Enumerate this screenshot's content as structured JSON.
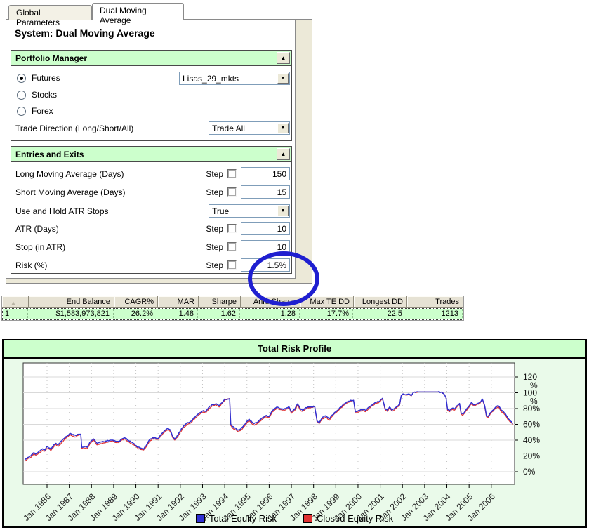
{
  "tabs": [
    {
      "label": "Global Parameters",
      "active": false
    },
    {
      "label": "Dual Moving Average",
      "active": true
    }
  ],
  "system_title": "System: Dual Moving Average",
  "portfolio_manager": {
    "header": "Portfolio Manager",
    "radios": [
      {
        "label": "Futures",
        "selected": true
      },
      {
        "label": "Stocks",
        "selected": false
      },
      {
        "label": "Forex",
        "selected": false
      }
    ],
    "portfolio_value": "Lisas_29_mkts",
    "trade_direction_label": "Trade Direction (Long/Short/All)",
    "trade_direction_value": "Trade All"
  },
  "entries_exits": {
    "header": "Entries and Exits",
    "step_label": "Step",
    "params": [
      {
        "label": "Long Moving Average (Days)",
        "type": "step",
        "value": "150"
      },
      {
        "label": "Short Moving Average (Days)",
        "type": "step",
        "value": "15"
      },
      {
        "label": "Use and Hold ATR Stops",
        "type": "select",
        "value": "True"
      },
      {
        "label": "ATR (Days)",
        "type": "step",
        "value": "10"
      },
      {
        "label": "Stop (in ATR)",
        "type": "step",
        "value": "10"
      },
      {
        "label": "Risk (%)",
        "type": "step",
        "value": "1.5%"
      }
    ]
  },
  "annotations": [
    {
      "shape": "ellipse",
      "color": "#1f1fd0",
      "around": "Stop (in ATR) and Risk (%) values"
    }
  ],
  "results_table": {
    "columns": [
      "",
      "End Balance",
      "CAGR%",
      "MAR",
      "Sharpe",
      "Ann. Sharpe",
      "Max TE DD",
      "Longest DD",
      "Trades"
    ],
    "rows": [
      [
        "1",
        "$1,583,973,821",
        "26.2%",
        "1.48",
        "1.62",
        "1.28",
        "17.7%",
        "22.5",
        "1213"
      ]
    ]
  },
  "chart_data": {
    "type": "line",
    "title": "Total Risk Profile",
    "xlabel": "",
    "ylabel": "%",
    "ylim": [
      0,
      120
    ],
    "yticks": [
      0,
      20,
      40,
      60,
      80,
      100,
      120
    ],
    "xtick_years": [
      1986,
      1987,
      1988,
      1989,
      1990,
      1991,
      1992,
      1993,
      1994,
      1995,
      1996,
      1997,
      1998,
      1999,
      2000,
      2001,
      2002,
      2003,
      2004,
      2005,
      2006
    ],
    "xtick_label_prefix": "Jan ",
    "xlim": [
      1984.9,
      2007.05
    ],
    "grid": true,
    "legend_position": "bottom",
    "x": [
      1985.0,
      1985.1,
      1985.25,
      1985.4,
      1985.5,
      1985.65,
      1985.8,
      1985.9,
      1986.0,
      1986.1,
      1986.18,
      1986.3,
      1986.4,
      1986.5,
      1986.65,
      1986.8,
      1986.95,
      1987.05,
      1987.15,
      1987.3,
      1987.42,
      1987.52,
      1987.56,
      1987.7,
      1987.8,
      1987.95,
      1988.1,
      1988.25,
      1988.4,
      1988.55,
      1988.7,
      1988.85,
      1988.97,
      1989.1,
      1989.25,
      1989.4,
      1989.5,
      1989.65,
      1989.8,
      1989.95,
      1990.1,
      1990.25,
      1990.35,
      1990.5,
      1990.6,
      1990.75,
      1990.9,
      1991.0,
      1991.15,
      1991.3,
      1991.45,
      1991.55,
      1991.65,
      1991.75,
      1991.9,
      1992.0,
      1992.15,
      1992.3,
      1992.4,
      1992.5,
      1992.6,
      1992.75,
      1992.9,
      1993.05,
      1993.15,
      1993.3,
      1993.45,
      1993.6,
      1993.75,
      1993.9,
      1994.0,
      1994.12,
      1994.22,
      1994.27,
      1994.35,
      1994.5,
      1994.6,
      1994.7,
      1994.8,
      1994.9,
      1995.0,
      1995.1,
      1995.22,
      1995.32,
      1995.45,
      1995.6,
      1995.75,
      1995.85,
      1996.0,
      1996.15,
      1996.35,
      1996.5,
      1996.65,
      1996.8,
      1996.9,
      1997.0,
      1997.15,
      1997.28,
      1997.4,
      1997.5,
      1997.62,
      1997.75,
      1997.9,
      1998.05,
      1998.16,
      1998.25,
      1998.4,
      1998.55,
      1998.7,
      1998.85,
      1999.0,
      1999.15,
      1999.3,
      1999.5,
      1999.65,
      1999.8,
      1999.88,
      2000.0,
      2000.12,
      2000.25,
      2000.35,
      2000.5,
      2000.65,
      2000.8,
      2000.95,
      2001.1,
      2001.22,
      2001.32,
      2001.42,
      2001.52,
      2001.62,
      2001.75,
      2001.87,
      2001.95,
      2002.05,
      2002.15,
      2002.28,
      2002.4,
      2002.5,
      2002.7,
      2003.0,
      2003.3,
      2003.6,
      2003.78,
      2003.88,
      2003.96,
      2004.03,
      2004.12,
      2004.25,
      2004.35,
      2004.45,
      2004.57,
      2004.64,
      2004.72,
      2004.85,
      2004.95,
      2005.1,
      2005.2,
      2005.35,
      2005.5,
      2005.6,
      2005.7,
      2005.78,
      2005.85,
      2005.95,
      2006.05,
      2006.2,
      2006.32,
      2006.45,
      2006.55,
      2006.67,
      2006.77,
      2006.87,
      2006.97
    ],
    "series": [
      {
        "name": "Total Equity Risk",
        "color": "#3030d2",
        "y": [
          15,
          17,
          20,
          24,
          22.5,
          26,
          29,
          27.5,
          32,
          30,
          28.5,
          34,
          36,
          34,
          39,
          43,
          46,
          48.5,
          47,
          46,
          47.5,
          47.5,
          31,
          32,
          31,
          38,
          41.5,
          36,
          37.5,
          38,
          39,
          40,
          40,
          38.5,
          38.5,
          42,
          43,
          40,
          37.5,
          34.5,
          31,
          29.5,
          28.5,
          35,
          40,
          43,
          42.5,
          42,
          48,
          52,
          55,
          53,
          45,
          41,
          47,
          52,
          58,
          62,
          62.5,
          64,
          68,
          72,
          75,
          77.5,
          76,
          82,
          85,
          86,
          83.5,
          88,
          91.5,
          92,
          92.5,
          60,
          57,
          55,
          52.5,
          54,
          56.5,
          60,
          64,
          66.5,
          63,
          61,
          62.5,
          66,
          69,
          71,
          70,
          78,
          82,
          80,
          79,
          81,
          82,
          76,
          79,
          86,
          80,
          78,
          80.5,
          82,
          82,
          82.5,
          64,
          62.5,
          69,
          71,
          67,
          72,
          76,
          80,
          84,
          88.5,
          90,
          90.5,
          76,
          77,
          78.5,
          79,
          77.5,
          82,
          85,
          88,
          89,
          93,
          80,
          78,
          82,
          78,
          79.5,
          83,
          85,
          97,
          98.5,
          97.5,
          98.5,
          96.5,
          100.5,
          101,
          101,
          101,
          101,
          100.5,
          98,
          94,
          79,
          77.5,
          80.5,
          79.5,
          83.5,
          86.5,
          74.5,
          73,
          78,
          81.5,
          87.5,
          85,
          86,
          88,
          92,
          84,
          71.5,
          70,
          74.5,
          77.5,
          82,
          83.5,
          78,
          76,
          71.5,
          67,
          64,
          61
        ]
      },
      {
        "name": "Closed Equity Risk",
        "color": "#e03232",
        "y": [
          13.5,
          15.5,
          18,
          22.5,
          21,
          24,
          27,
          26,
          29.5,
          28.5,
          27,
          31.5,
          34.5,
          32,
          36.5,
          41,
          44.5,
          47,
          45,
          44,
          46.5,
          47.5,
          29.5,
          30,
          29,
          36,
          40,
          34,
          35.5,
          36.5,
          37.5,
          38.5,
          39,
          37,
          37.5,
          40.5,
          41.5,
          38,
          35.5,
          33,
          29.5,
          28,
          27.5,
          33,
          38,
          41.5,
          41,
          41,
          46,
          50.5,
          53.5,
          51,
          43.5,
          40,
          45,
          50,
          56,
          60,
          61,
          62.5,
          66,
          70,
          73.5,
          76,
          74.5,
          80,
          83.5,
          85,
          82,
          87,
          90.5,
          92,
          92.5,
          58.5,
          55,
          53,
          50.5,
          52,
          54.5,
          58,
          62,
          64.5,
          61,
          59,
          60.5,
          64,
          67.5,
          69.5,
          68,
          76,
          80.5,
          78.5,
          77.5,
          79.5,
          81,
          74,
          77.5,
          84.5,
          78,
          76.5,
          79,
          81,
          81.5,
          82.5,
          62.5,
          61,
          67,
          69,
          65,
          70.5,
          74.5,
          78.5,
          82.5,
          87,
          89,
          90.5,
          74.5,
          75.5,
          77,
          77.5,
          76,
          80.5,
          83.5,
          86.5,
          88,
          92.5,
          78.5,
          76.5,
          80.5,
          77,
          78,
          81.5,
          84,
          96.5,
          98,
          97,
          98,
          96,
          100.5,
          101,
          101,
          101,
          101,
          100.5,
          98,
          93.5,
          77.5,
          76,
          79,
          78,
          82,
          85.5,
          73,
          71.5,
          76.5,
          80,
          86,
          83.5,
          85,
          87,
          91.5,
          82.5,
          70,
          68.5,
          73,
          76,
          80.5,
          82.5,
          76,
          74.5,
          70,
          65.5,
          62.5,
          60
        ]
      }
    ]
  }
}
